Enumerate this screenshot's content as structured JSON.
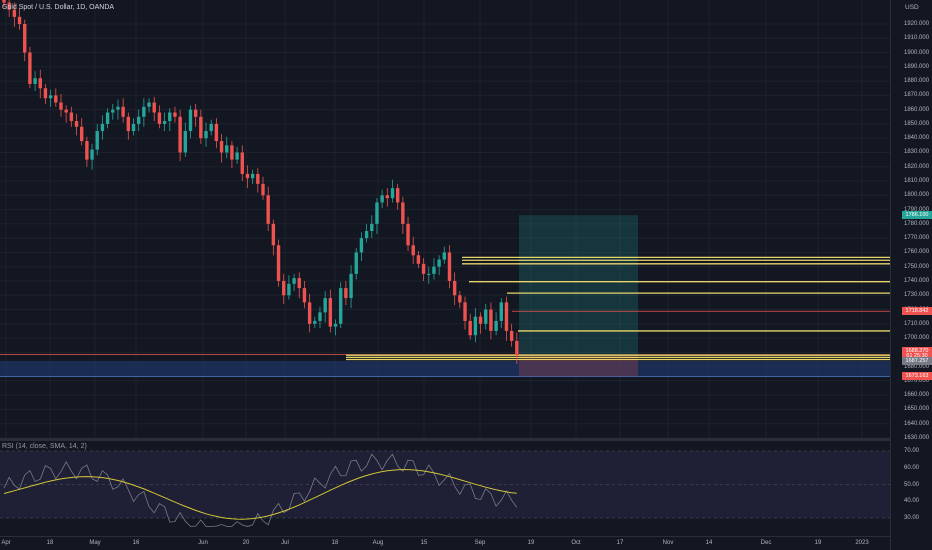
{
  "chart": {
    "title": "Gold Spot / U.S. Dollar, 1D, OANDA",
    "currency": "USD",
    "price_ticks": [
      "1920.000",
      "1910.000",
      "1900.000",
      "1890.000",
      "1880.000",
      "1870.000",
      "1860.000",
      "1850.000",
      "1840.000",
      "1830.000",
      "1820.000",
      "1810.000",
      "1800.000",
      "1790.000",
      "1780.000",
      "1770.000",
      "1760.000",
      "1750.000",
      "1740.000",
      "1730.000",
      "1720.000",
      "1710.000",
      "1700.000",
      "1690.000",
      "1680.000",
      "1670.000",
      "1660.000",
      "1650.000",
      "1640.000",
      "1630.000"
    ],
    "price_tags": {
      "target": "1786.100",
      "entry": "1718.842",
      "last": "1688.370",
      "countdown": "61 25:30",
      "support": "1687.257",
      "stop": "1673.163"
    },
    "time_ticks": [
      "Apr",
      "18",
      "May",
      "16",
      "Jun",
      "20",
      "Jul",
      "18",
      "Aug",
      "15",
      "Sep",
      "19",
      "Oct",
      "17",
      "Nov",
      "14",
      "Dec",
      "19",
      "2023"
    ]
  },
  "rsi": {
    "title": "RSI (14, close, SMA, 14, 2)",
    "ticks": [
      "70.00",
      "60.00",
      "50.00",
      "40.00",
      "30.00"
    ]
  },
  "colors": {
    "background": "#131722",
    "up": "#26a69a",
    "down": "#ef5350",
    "zone_line": "#e8d56a",
    "support_band": "#1f3463",
    "rsi_line": "#787b86",
    "rsi_ma": "#d3c637"
  },
  "chart_data": {
    "type": "candlestick",
    "instrument": "XAUUSD",
    "timeframe": "1D",
    "ylim": [
      1625,
      1925
    ],
    "closes": [
      1935,
      1930,
      1925,
      1920,
      1900,
      1878,
      1882,
      1875,
      1868,
      1870,
      1865,
      1860,
      1858,
      1852,
      1848,
      1838,
      1825,
      1832,
      1845,
      1850,
      1858,
      1860,
      1862,
      1855,
      1845,
      1850,
      1855,
      1862,
      1865,
      1858,
      1850,
      1852,
      1858,
      1855,
      1830,
      1845,
      1860,
      1855,
      1840,
      1845,
      1850,
      1838,
      1830,
      1835,
      1825,
      1830,
      1815,
      1812,
      1815,
      1808,
      1800,
      1780,
      1765,
      1740,
      1730,
      1738,
      1742,
      1735,
      1725,
      1710,
      1712,
      1718,
      1728,
      1708,
      1710,
      1735,
      1728,
      1745,
      1760,
      1770,
      1775,
      1780,
      1795,
      1800,
      1798,
      1805,
      1795,
      1780,
      1765,
      1758,
      1752,
      1745,
      1745,
      1750,
      1755,
      1760,
      1740,
      1730,
      1725,
      1712,
      1702,
      1715,
      1710,
      1720,
      1705,
      1712,
      1725,
      1705,
      1698,
      1688
    ]
  }
}
